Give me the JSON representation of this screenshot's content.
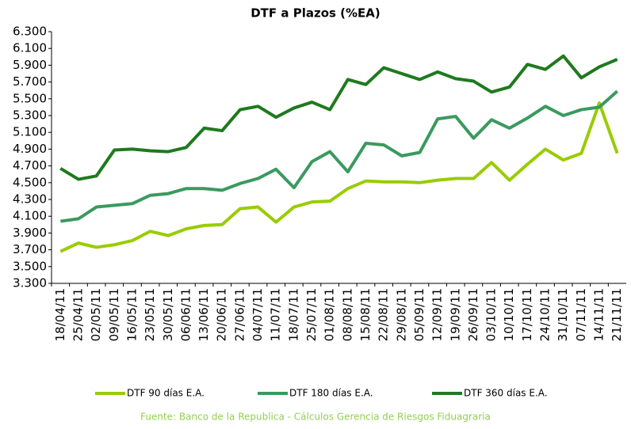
{
  "chart_data": {
    "type": "line",
    "title": "DTF a Plazos (%EA)",
    "categories": [
      "18/04/11",
      "25/04/11",
      "02/05/11",
      "09/05/11",
      "16/05/11",
      "23/05/11",
      "30/05/11",
      "06/06/11",
      "13/06/11",
      "20/06/11",
      "27/06/11",
      "04/07/11",
      "11/07/11",
      "18/07/11",
      "25/07/11",
      "01/08/11",
      "08/08/11",
      "15/08/11",
      "22/08/11",
      "29/08/11",
      "05/09/11",
      "12/09/11",
      "19/09/11",
      "26/09/11",
      "03/10/11",
      "10/10/11",
      "17/10/11",
      "24/10/11",
      "31/10/11",
      "07/11/11",
      "14/11/11",
      "21/11/11"
    ],
    "series": [
      {
        "name": "DTF 90 días E.A.",
        "color": "#99cc00",
        "values": [
          3.68,
          3.78,
          3.73,
          3.76,
          3.81,
          3.92,
          3.87,
          3.95,
          3.99,
          4.0,
          4.19,
          4.21,
          4.03,
          4.21,
          4.27,
          4.28,
          4.43,
          4.52,
          4.51,
          4.51,
          4.5,
          4.53,
          4.55,
          4.55,
          4.74,
          4.53,
          4.72,
          4.9,
          4.77,
          4.85,
          5.45,
          4.85
        ]
      },
      {
        "name": "DTF 180 días E.A.",
        "color": "#3a9a5e",
        "values": [
          4.04,
          4.07,
          4.21,
          4.23,
          4.25,
          4.35,
          4.37,
          4.43,
          4.43,
          4.41,
          4.49,
          4.55,
          4.66,
          4.44,
          4.75,
          4.87,
          4.63,
          4.97,
          4.95,
          4.82,
          4.86,
          5.26,
          5.29,
          5.03,
          5.25,
          5.15,
          5.27,
          5.41,
          5.3,
          5.37,
          5.4,
          5.59
        ]
      },
      {
        "name": "DTF 360 días E.A.",
        "color": "#1e7a1e",
        "values": [
          4.67,
          4.54,
          4.58,
          4.89,
          4.9,
          4.88,
          4.87,
          4.92,
          5.15,
          5.12,
          5.37,
          5.41,
          5.28,
          5.39,
          5.46,
          5.37,
          5.73,
          5.67,
          5.87,
          5.8,
          5.73,
          5.82,
          5.74,
          5.71,
          5.58,
          5.64,
          5.91,
          5.85,
          6.01,
          5.75,
          5.88,
          5.97
        ]
      }
    ],
    "ylim": [
      3.3,
      6.3
    ],
    "yticks": [
      {
        "value": 3.3,
        "label": "3.300"
      },
      {
        "value": 3.5,
        "label": "3.500"
      },
      {
        "value": 3.7,
        "label": "3.700"
      },
      {
        "value": 3.9,
        "label": "3.900"
      },
      {
        "value": 4.1,
        "label": "4.100"
      },
      {
        "value": 4.3,
        "label": "4.300"
      },
      {
        "value": 4.5,
        "label": "4.500"
      },
      {
        "value": 4.7,
        "label": "4.700"
      },
      {
        "value": 4.9,
        "label": "4.900"
      },
      {
        "value": 5.1,
        "label": "5.100"
      },
      {
        "value": 5.3,
        "label": "5.300"
      },
      {
        "value": 5.5,
        "label": "5.500"
      },
      {
        "value": 5.7,
        "label": "5.700"
      },
      {
        "value": 5.9,
        "label": "5.900"
      },
      {
        "value": 6.1,
        "label": "6.100"
      },
      {
        "value": 6.3,
        "label": "6.300"
      }
    ],
    "grid": false,
    "legend": "bottom",
    "source": "Fuente: Banco de la Republica - Cálculos Gerencia de Riesgos Fiduagraria"
  }
}
